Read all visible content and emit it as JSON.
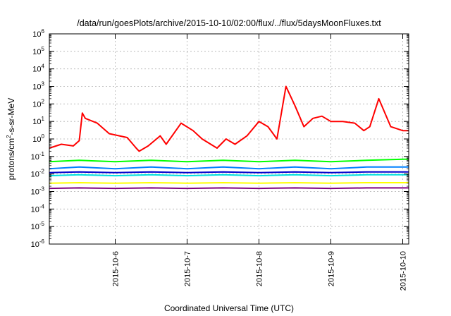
{
  "chart_data": {
    "type": "line",
    "title": "/data/run/goesPlots/archive/2015-10-10/02:00/flux/../flux/5daysMoonFluxes.txt",
    "xlabel": "Coordinated Universal Time (UTC)",
    "ylabel": {
      "prefix": "protons/cm",
      "exponent": "2",
      "suffix": "-s-sr-MeV"
    },
    "yscale": "log",
    "ylim": [
      1e-06,
      1000000.0
    ],
    "y_ticks": [
      {
        "base": "10",
        "exp": "-6",
        "value": 1e-06
      },
      {
        "base": "10",
        "exp": "-5",
        "value": 1e-05
      },
      {
        "base": "10",
        "exp": "-4",
        "value": 0.0001
      },
      {
        "base": "10",
        "exp": "-3",
        "value": 0.001
      },
      {
        "base": "10",
        "exp": "-2",
        "value": 0.01
      },
      {
        "base": "10",
        "exp": "-1",
        "value": 0.1
      },
      {
        "base": "10",
        "exp": "0",
        "value": 1
      },
      {
        "base": "10",
        "exp": "1",
        "value": 10
      },
      {
        "base": "10",
        "exp": "2",
        "value": 100
      },
      {
        "base": "10",
        "exp": "3",
        "value": 1000
      },
      {
        "base": "10",
        "exp": "4",
        "value": 10000
      },
      {
        "base": "10",
        "exp": "5",
        "value": 100000
      },
      {
        "base": "10",
        "exp": "6",
        "value": 1000000
      }
    ],
    "xlim": [
      "2015-10-05 02:00",
      "2015-10-10 02:00"
    ],
    "x_ticks": [
      "2015-10-6",
      "2015-10-7",
      "2015-10-8",
      "2015-10-9",
      "2015-10-10"
    ],
    "grid": true,
    "legend": "none",
    "series_colors": [
      "#ff0000",
      "#00ff00",
      "#0080ff",
      "#00e0e0",
      "#0000cc",
      "#ffff00",
      "#800080"
    ],
    "series": [
      {
        "color": "#ff0000",
        "x": [
          "2015-10-05 02:00",
          "2015-10-05 06:00",
          "2015-10-05 10:00",
          "2015-10-05 12:00",
          "2015-10-05 13:00",
          "2015-10-05 14:00",
          "2015-10-05 18:00",
          "2015-10-05 22:00",
          "2015-10-06 04:00",
          "2015-10-06 07:00",
          "2015-10-06 08:00",
          "2015-10-06 11:00",
          "2015-10-06 15:00",
          "2015-10-06 17:00",
          "2015-10-06 22:00",
          "2015-10-07 02:00",
          "2015-10-07 05:00",
          "2015-10-07 10:00",
          "2015-10-07 13:00",
          "2015-10-07 16:00",
          "2015-10-07 20:00",
          "2015-10-08 00:00",
          "2015-10-08 03:00",
          "2015-10-08 06:00",
          "2015-10-08 09:00",
          "2015-10-08 12:00",
          "2015-10-08 15:00",
          "2015-10-08 18:00",
          "2015-10-08 21:00",
          "2015-10-09 00:00",
          "2015-10-09 04:00",
          "2015-10-09 08:00",
          "2015-10-09 11:00",
          "2015-10-09 13:00",
          "2015-10-09 16:00",
          "2015-10-09 20:00",
          "2015-10-10 00:00",
          "2015-10-10 02:00"
        ],
        "y": [
          0.3,
          0.5,
          0.4,
          0.8,
          30,
          15,
          8,
          2,
          1.2,
          0.3,
          0.2,
          0.4,
          1.5,
          0.5,
          8,
          3,
          1,
          0.3,
          1,
          0.5,
          1.5,
          10,
          5,
          1,
          1000,
          80,
          5,
          15,
          20,
          10,
          10,
          8,
          3,
          5,
          200,
          5,
          3,
          3
        ]
      },
      {
        "color": "#00ff00",
        "x": [
          "2015-10-05 02:00",
          "2015-10-05 12:00",
          "2015-10-06 00:00",
          "2015-10-06 12:00",
          "2015-10-07 00:00",
          "2015-10-07 12:00",
          "2015-10-08 00:00",
          "2015-10-08 12:00",
          "2015-10-09 00:00",
          "2015-10-09 12:00",
          "2015-10-10 00:00",
          "2015-10-10 02:00"
        ],
        "y": [
          0.05,
          0.06,
          0.05,
          0.06,
          0.05,
          0.06,
          0.05,
          0.06,
          0.05,
          0.06,
          0.07,
          0.07
        ]
      },
      {
        "color": "#0080ff",
        "x": [
          "2015-10-05 02:00",
          "2015-10-05 12:00",
          "2015-10-06 00:00",
          "2015-10-06 12:00",
          "2015-10-07 00:00",
          "2015-10-07 12:00",
          "2015-10-08 00:00",
          "2015-10-08 12:00",
          "2015-10-09 00:00",
          "2015-10-09 12:00",
          "2015-10-10 00:00",
          "2015-10-10 02:00"
        ],
        "y": [
          0.02,
          0.025,
          0.02,
          0.025,
          0.02,
          0.025,
          0.02,
          0.025,
          0.02,
          0.025,
          0.025,
          0.025
        ]
      },
      {
        "color": "#00e0e0",
        "x": [
          "2015-10-05 02:00",
          "2015-10-05 12:00",
          "2015-10-06 00:00",
          "2015-10-06 12:00",
          "2015-10-07 00:00",
          "2015-10-07 12:00",
          "2015-10-08 00:00",
          "2015-10-08 12:00",
          "2015-10-09 00:00",
          "2015-10-09 12:00",
          "2015-10-10 00:00",
          "2015-10-10 02:00"
        ],
        "y": [
          0.008,
          0.009,
          0.008,
          0.009,
          0.008,
          0.009,
          0.008,
          0.009,
          0.008,
          0.009,
          0.009,
          0.009
        ]
      },
      {
        "color": "#0000cc",
        "x": [
          "2015-10-05 02:00",
          "2015-10-05 12:00",
          "2015-10-06 00:00",
          "2015-10-06 12:00",
          "2015-10-07 00:00",
          "2015-10-07 12:00",
          "2015-10-08 00:00",
          "2015-10-08 12:00",
          "2015-10-09 00:00",
          "2015-10-09 12:00",
          "2015-10-10 00:00",
          "2015-10-10 02:00"
        ],
        "y": [
          0.012,
          0.013,
          0.012,
          0.013,
          0.012,
          0.013,
          0.012,
          0.013,
          0.012,
          0.013,
          0.013,
          0.013
        ]
      },
      {
        "color": "#ffff00",
        "x": [
          "2015-10-05 02:00",
          "2015-10-05 12:00",
          "2015-10-06 00:00",
          "2015-10-06 12:00",
          "2015-10-07 00:00",
          "2015-10-07 12:00",
          "2015-10-08 00:00",
          "2015-10-08 12:00",
          "2015-10-09 00:00",
          "2015-10-09 12:00",
          "2015-10-10 00:00",
          "2015-10-10 02:00"
        ],
        "y": [
          0.003,
          0.0032,
          0.003,
          0.0032,
          0.003,
          0.0032,
          0.003,
          0.0032,
          0.003,
          0.0032,
          0.0032,
          0.0032
        ]
      },
      {
        "color": "#800080",
        "x": [
          "2015-10-05 02:00",
          "2015-10-05 12:00",
          "2015-10-06 00:00",
          "2015-10-06 12:00",
          "2015-10-07 00:00",
          "2015-10-07 12:00",
          "2015-10-08 00:00",
          "2015-10-08 12:00",
          "2015-10-09 00:00",
          "2015-10-09 12:00",
          "2015-10-10 00:00",
          "2015-10-10 02:00"
        ],
        "y": [
          0.0015,
          0.0016,
          0.0015,
          0.0016,
          0.0015,
          0.0016,
          0.0015,
          0.0016,
          0.0015,
          0.0016,
          0.0016,
          0.0016
        ]
      }
    ]
  }
}
